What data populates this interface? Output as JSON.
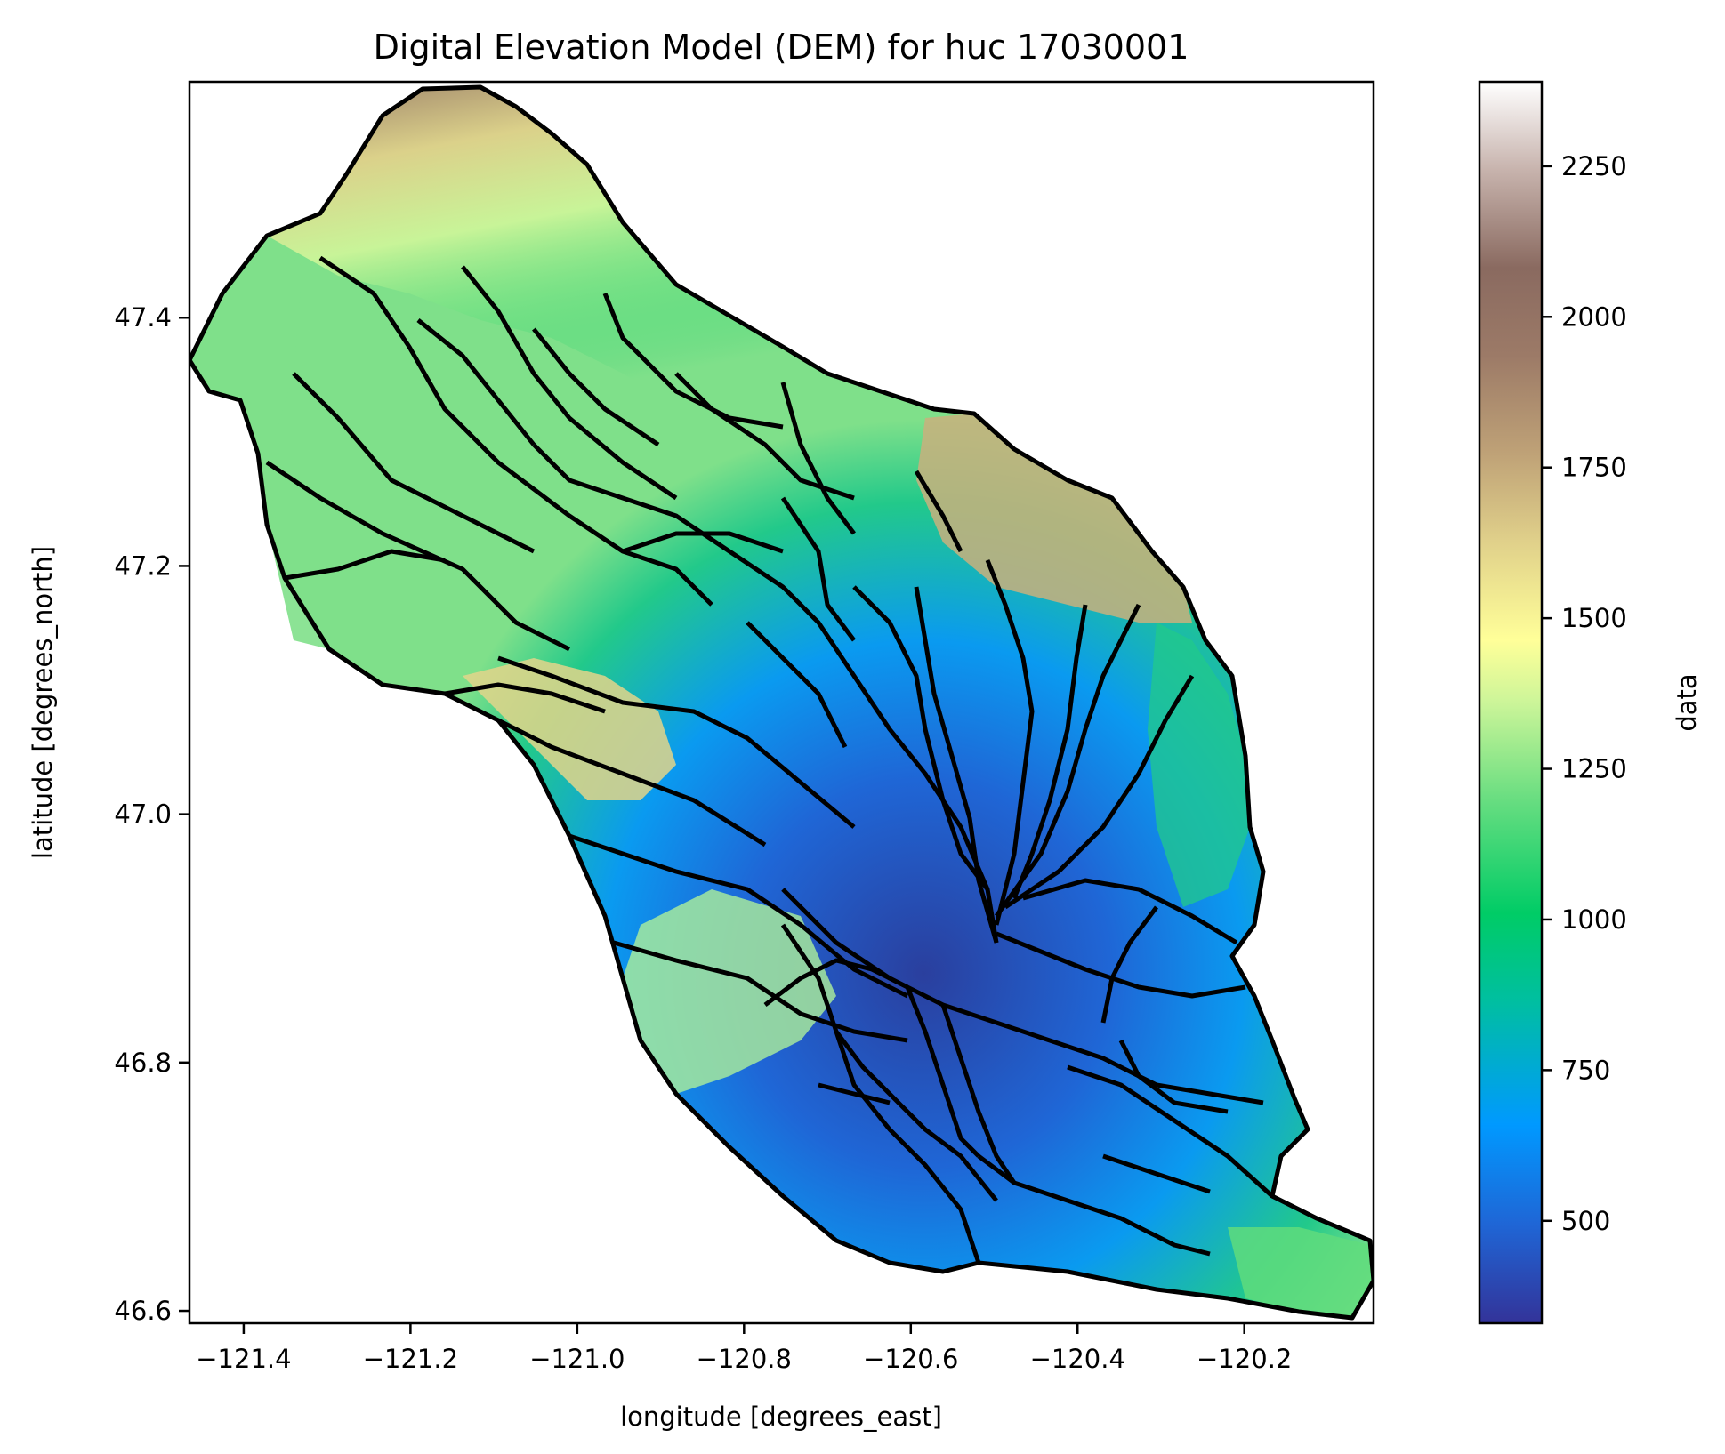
{
  "chart_data": {
    "type": "heatmap",
    "title": "Digital Elevation Model (DEM) for huc 17030001",
    "xlabel": "longitude [degrees_east]",
    "ylabel": "latitude [degrees_north]",
    "xlim": [
      -121.465,
      -120.045
    ],
    "ylim": [
      46.59,
      47.59
    ],
    "xticks": [
      -121.4,
      -121.2,
      -121.0,
      -120.8,
      -120.6,
      -120.4,
      -120.2
    ],
    "xtick_labels": [
      "−121.4",
      "−121.2",
      "−121.0",
      "−120.8",
      "−120.6",
      "−120.4",
      "−120.2"
    ],
    "yticks": [
      46.6,
      46.8,
      47.0,
      47.2,
      47.4
    ],
    "ytick_labels": [
      "46.6",
      "46.8",
      "47.0",
      "47.2",
      "47.4"
    ],
    "colorbar": {
      "label": "data",
      "colormap": "terrain",
      "range": [
        330,
        2390
      ],
      "ticks": [
        500,
        750,
        1000,
        1250,
        1500,
        1750,
        2000,
        2250
      ],
      "tick_labels": [
        "500",
        "750",
        "1000",
        "1250",
        "1500",
        "1750",
        "2000",
        "2250"
      ]
    },
    "grid": false,
    "boundary_color": "#000000"
  }
}
